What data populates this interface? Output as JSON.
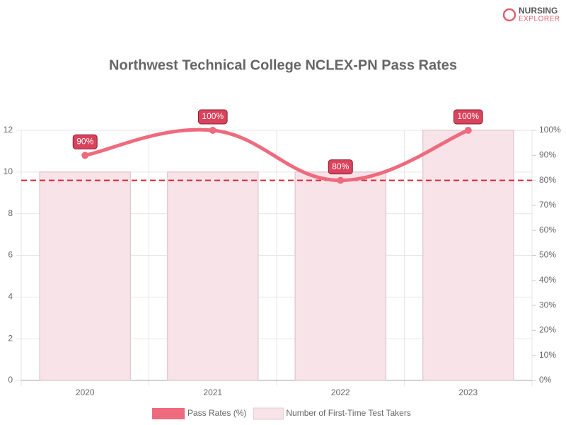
{
  "logo": {
    "line1": "NURSING",
    "line2": "EXPLORER"
  },
  "chart_data": {
    "type": "combo",
    "title": "Northwest Technical College NCLEX-PN Pass Rates",
    "categories": [
      "2020",
      "2021",
      "2022",
      "2023"
    ],
    "series": [
      {
        "name": "Pass Rates (%)",
        "type": "line",
        "axis": "y2",
        "color": "#ee6b7e",
        "values": [
          90,
          100,
          80,
          100
        ],
        "value_labels": [
          "90%",
          "100%",
          "80%",
          "100%"
        ]
      },
      {
        "name": "Number of First-Time Test Takers",
        "type": "bar",
        "axis": "y",
        "color": "#f8e4e8",
        "values": [
          10,
          10,
          10,
          12
        ]
      }
    ],
    "ylim": [
      0,
      12
    ],
    "yticks": [
      0,
      2,
      4,
      6,
      8,
      10,
      12
    ],
    "y2lim": [
      0,
      100
    ],
    "y2ticks": [
      {
        "value": 0,
        "label": "0%"
      },
      {
        "value": 10,
        "label": "10%"
      },
      {
        "value": 20,
        "label": "20%"
      },
      {
        "value": 30,
        "label": "30%"
      },
      {
        "value": 40,
        "label": "40%"
      },
      {
        "value": 50,
        "label": "50%"
      },
      {
        "value": 60,
        "label": "60%"
      },
      {
        "value": 70,
        "label": "70%"
      },
      {
        "value": 80,
        "label": "80%"
      },
      {
        "value": 90,
        "label": "90%"
      },
      {
        "value": 100,
        "label": "100%"
      }
    ],
    "reference_line": {
      "value": 80,
      "axis": "y2",
      "color": "#e02030"
    },
    "grid": true
  }
}
